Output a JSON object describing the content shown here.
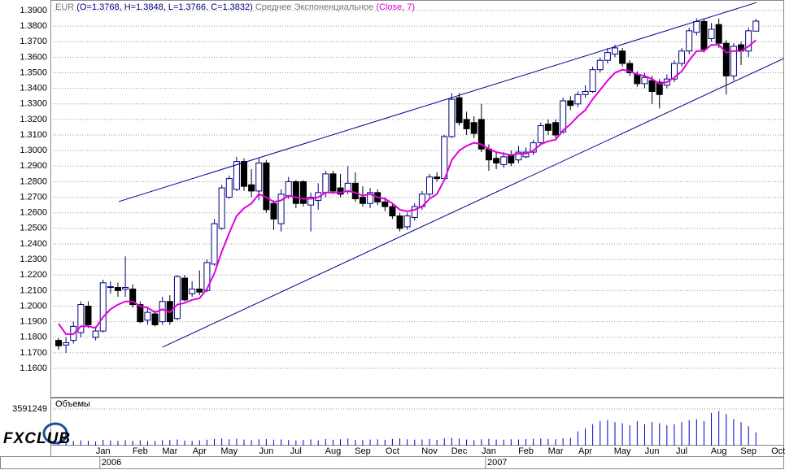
{
  "chart_data": {
    "type": "candlestick",
    "symbol": "EUR",
    "ohlc_label": "(O=1.3768, H=1.3848, L=1.3766, C=1.3832)",
    "indicator": {
      "name": "Среднее Экспоненциальное",
      "params": "(Close, 7)",
      "color": "#e000e0",
      "values": [
        1.1887,
        1.182,
        1.182,
        1.187,
        1.187,
        1.186,
        1.193,
        1.198,
        1.201,
        1.203,
        1.203,
        1.2,
        1.199,
        1.196,
        1.198,
        1.196,
        1.201,
        1.202,
        1.204,
        1.205,
        1.211,
        1.221,
        1.235,
        1.247,
        1.258,
        1.263,
        1.266,
        1.272,
        1.27,
        1.267,
        1.268,
        1.271,
        1.27,
        1.269,
        1.269,
        1.27,
        1.273,
        1.273,
        1.273,
        1.274,
        1.273,
        1.271,
        1.272,
        1.27,
        1.269,
        1.266,
        1.262,
        1.261,
        1.262,
        1.264,
        1.269,
        1.272,
        1.281,
        1.294,
        1.3,
        1.303,
        1.305,
        1.304,
        1.301,
        1.299,
        1.298,
        1.297,
        1.298,
        1.298,
        1.3,
        1.304,
        1.306,
        1.307,
        1.313,
        1.317,
        1.322,
        1.326,
        1.333,
        1.339,
        1.345,
        1.35,
        1.352,
        1.351,
        1.349,
        1.348,
        1.346,
        1.343,
        1.344,
        1.347,
        1.351,
        1.358,
        1.364,
        1.364,
        1.368,
        1.368,
        1.363,
        1.364,
        1.364,
        1.367,
        1.371,
        null,
        null,
        null
      ]
    },
    "volume_label": "Объемы",
    "logo": "FXCLUB",
    "categories": [
      null,
      null,
      null,
      null,
      null,
      null,
      "Jan",
      null,
      null,
      null,
      null,
      "Feb",
      null,
      null,
      null,
      "Mar",
      null,
      null,
      null,
      "Apr",
      null,
      null,
      null,
      "May",
      null,
      null,
      null,
      null,
      "Jun",
      null,
      null,
      null,
      "Jul",
      null,
      null,
      null,
      null,
      "Aug",
      null,
      null,
      null,
      "Sep",
      null,
      null,
      null,
      "Oct",
      null,
      null,
      null,
      null,
      "Nov",
      null,
      null,
      null,
      "Dec",
      null,
      null,
      null,
      "Jan",
      null,
      null,
      null,
      null,
      "Feb",
      null,
      null,
      null,
      "Mar",
      null,
      null,
      null,
      "Apr",
      null,
      null,
      null,
      null,
      "May",
      null,
      null,
      null,
      "Jun",
      null,
      null,
      null,
      "Jul",
      null,
      null,
      null,
      null,
      "Aug",
      null,
      null,
      null,
      "Sep",
      null,
      null,
      null,
      "Oct"
    ],
    "years": [
      null,
      null,
      null,
      null,
      null,
      null,
      "2006",
      null,
      null,
      null,
      null,
      null,
      null,
      null,
      null,
      null,
      null,
      null,
      null,
      null,
      null,
      null,
      null,
      null,
      null,
      null,
      null,
      null,
      null,
      null,
      null,
      null,
      null,
      null,
      null,
      null,
      null,
      null,
      null,
      null,
      null,
      null,
      null,
      null,
      null,
      null,
      null,
      null,
      null,
      null,
      null,
      null,
      null,
      null,
      null,
      null,
      null,
      null,
      "2007",
      null,
      null,
      null,
      null,
      null,
      null,
      null,
      null,
      null,
      null,
      null,
      null,
      null,
      null,
      null,
      null,
      null,
      null,
      null,
      null,
      null,
      null,
      null,
      null,
      null,
      null,
      null,
      null,
      null,
      null,
      null,
      null,
      null,
      null,
      null,
      null,
      null,
      null,
      null
    ],
    "open": [
      1.178,
      1.175,
      1.178,
      1.183,
      1.2,
      1.18,
      1.184,
      1.212,
      1.212,
      1.211,
      1.211,
      1.201,
      1.191,
      1.195,
      1.19,
      1.203,
      1.192,
      1.218,
      1.208,
      1.211,
      1.21,
      1.227,
      1.25,
      1.27,
      1.275,
      1.293,
      1.278,
      1.274,
      1.292,
      1.266,
      1.253,
      1.271,
      1.28,
      1.28,
      1.265,
      1.268,
      1.273,
      1.285,
      1.276,
      1.274,
      1.279,
      1.27,
      1.266,
      1.273,
      1.267,
      1.264,
      1.258,
      1.251,
      1.257,
      1.264,
      1.272,
      1.283,
      1.282,
      1.309,
      1.334,
      1.32,
      1.318,
      1.32,
      1.301,
      1.295,
      1.291,
      1.297,
      1.294,
      1.296,
      1.299,
      1.305,
      1.317,
      1.318,
      1.312,
      1.332,
      1.33,
      1.336,
      1.338,
      1.352,
      1.358,
      1.362,
      1.364,
      1.356,
      1.349,
      1.343,
      1.345,
      1.344,
      1.342,
      1.346,
      1.356,
      1.364,
      1.376,
      1.383,
      1.372,
      1.381,
      1.369,
      1.348,
      1.368,
      1.364,
      1.3768,
      null,
      null,
      null
    ],
    "high": [
      1.1795,
      1.18,
      1.19,
      1.203,
      1.203,
      1.187,
      1.217,
      1.216,
      1.215,
      1.232,
      1.214,
      1.203,
      1.199,
      1.197,
      1.206,
      1.207,
      1.22,
      1.22,
      1.216,
      1.223,
      1.23,
      1.256,
      1.278,
      1.284,
      1.296,
      1.295,
      1.288,
      1.295,
      1.294,
      1.268,
      1.275,
      1.283,
      1.281,
      1.281,
      1.273,
      1.279,
      1.287,
      1.287,
      1.285,
      1.29,
      1.286,
      1.277,
      1.276,
      1.275,
      1.27,
      1.266,
      1.26,
      1.26,
      1.266,
      1.274,
      1.285,
      1.286,
      1.31,
      1.337,
      1.337,
      1.325,
      1.322,
      1.33,
      1.304,
      1.299,
      1.299,
      1.3,
      1.303,
      1.302,
      1.307,
      1.318,
      1.32,
      1.32,
      1.334,
      1.335,
      1.338,
      1.342,
      1.354,
      1.36,
      1.366,
      1.368,
      1.366,
      1.358,
      1.351,
      1.35,
      1.348,
      1.346,
      1.349,
      1.358,
      1.366,
      1.379,
      1.385,
      1.385,
      1.382,
      1.385,
      1.371,
      1.369,
      1.37,
      1.379,
      1.3848,
      null,
      null,
      null
    ],
    "low": [
      1.172,
      1.17,
      1.176,
      1.18,
      1.186,
      1.178,
      1.183,
      1.208,
      1.206,
      1.206,
      1.199,
      1.189,
      1.188,
      1.187,
      1.188,
      1.188,
      1.191,
      1.203,
      1.206,
      1.207,
      1.209,
      1.226,
      1.249,
      1.269,
      1.274,
      1.274,
      1.27,
      1.268,
      1.26,
      1.249,
      1.248,
      1.269,
      1.263,
      1.264,
      1.248,
      1.262,
      1.27,
      1.272,
      1.27,
      1.272,
      1.267,
      1.264,
      1.263,
      1.265,
      1.261,
      1.256,
      1.248,
      1.249,
      1.255,
      1.262,
      1.27,
      1.28,
      1.281,
      1.308,
      1.316,
      1.31,
      1.308,
      1.299,
      1.287,
      1.288,
      1.289,
      1.29,
      1.292,
      1.295,
      1.297,
      1.304,
      1.31,
      1.308,
      1.311,
      1.326,
      1.328,
      1.334,
      1.337,
      1.35,
      1.356,
      1.36,
      1.354,
      1.348,
      1.341,
      1.34,
      1.33,
      1.327,
      1.34,
      1.344,
      1.354,
      1.362,
      1.374,
      1.363,
      1.37,
      1.366,
      1.336,
      1.345,
      1.355,
      1.36,
      1.3766,
      null,
      null,
      null
    ],
    "close": [
      1.1745,
      1.1765,
      1.187,
      1.201,
      1.188,
      1.184,
      1.215,
      1.2125,
      1.21,
      1.212,
      1.201,
      1.19,
      1.196,
      1.188,
      1.203,
      1.19,
      1.219,
      1.204,
      1.211,
      1.209,
      1.228,
      1.253,
      1.276,
      1.282,
      1.293,
      1.277,
      1.274,
      1.292,
      1.262,
      1.256,
      1.272,
      1.28,
      1.266,
      1.266,
      1.27,
      1.273,
      1.285,
      1.274,
      1.272,
      1.279,
      1.269,
      1.266,
      1.273,
      1.267,
      1.264,
      1.258,
      1.25,
      1.258,
      1.264,
      1.272,
      1.283,
      1.282,
      1.309,
      1.333,
      1.318,
      1.314,
      1.311,
      1.301,
      1.294,
      1.292,
      1.296,
      1.292,
      1.299,
      1.299,
      1.305,
      1.316,
      1.313,
      1.31,
      1.332,
      1.329,
      1.336,
      1.338,
      1.352,
      1.358,
      1.363,
      1.366,
      1.356,
      1.35,
      1.343,
      1.347,
      1.338,
      1.336,
      1.346,
      1.356,
      1.364,
      1.377,
      1.383,
      1.365,
      1.378,
      1.369,
      1.348,
      1.367,
      1.364,
      1.377,
      1.3832,
      null,
      null,
      null
    ],
    "volumes": [
      420000,
      380000,
      450000,
      520000,
      480000,
      400000,
      560000,
      500000,
      460000,
      520000,
      480000,
      530000,
      450000,
      470000,
      520000,
      550000,
      600000,
      490000,
      460000,
      520000,
      580000,
      640000,
      700000,
      620000,
      660000,
      590000,
      540000,
      610000,
      650000,
      580000,
      600000,
      540000,
      520000,
      560000,
      600000,
      510000,
      640000,
      580000,
      620000,
      700000,
      560000,
      530000,
      590000,
      610000,
      570000,
      650000,
      700000,
      620000,
      580000,
      600000,
      640000,
      560000,
      720000,
      760000,
      680000,
      590000,
      540000,
      620000,
      660000,
      600000,
      580000,
      620000,
      600000,
      640000,
      680000,
      700000,
      660000,
      620000,
      720000,
      760000,
      1400000,
      1700000,
      2100000,
      2400000,
      2500000,
      2300000,
      2200000,
      2000000,
      2400000,
      2100000,
      2300000,
      2200000,
      2000000,
      2100000,
      2300000,
      2500000,
      2600000,
      2400000,
      3200000,
      3400000,
      3100000,
      2600000,
      2300000,
      1900000,
      1300000,
      null,
      null,
      null
    ],
    "volume_color": "#0000cc",
    "volume_ylim": [
      0,
      3591249
    ],
    "volume_yticks": [
      3591249
    ],
    "up_color": "#ffffff",
    "down_color": "#000000",
    "outline_color": "#000080",
    "trendline_color": "#00008b",
    "trendlines": [
      {
        "x": [
          8.1,
          94.1
        ],
        "y": [
          1.2672,
          1.3952
        ]
      },
      {
        "x": [
          14.0,
          100.1
        ],
        "y": [
          1.1736,
          1.3644
        ]
      }
    ],
    "ylim": [
      1.1417,
      1.3968
    ],
    "yticks": [
      {
        "value": 1.16,
        "label": "1.1600"
      },
      {
        "value": 1.17,
        "label": "1.1700"
      },
      {
        "value": 1.18,
        "label": "1.1800"
      },
      {
        "value": 1.19,
        "label": "1.1900"
      },
      {
        "value": 1.2,
        "label": "1.2000"
      },
      {
        "value": 1.21,
        "label": "1.2100"
      },
      {
        "value": 1.22,
        "label": "1.2200"
      },
      {
        "value": 1.23,
        "label": "1.2300"
      },
      {
        "value": 1.24,
        "label": "1.2400"
      },
      {
        "value": 1.25,
        "label": "1.2500"
      },
      {
        "value": 1.26,
        "label": "1.2600"
      },
      {
        "value": 1.27,
        "label": "1.2700"
      },
      {
        "value": 1.28,
        "label": "1.2800"
      },
      {
        "value": 1.29,
        "label": "1.2900"
      },
      {
        "value": 1.3,
        "label": "1.3000"
      },
      {
        "value": 1.31,
        "label": "1.3100"
      },
      {
        "value": 1.32,
        "label": "1.3200"
      },
      {
        "value": 1.33,
        "label": "1.3300"
      },
      {
        "value": 1.34,
        "label": "1.3400"
      },
      {
        "value": 1.35,
        "label": "1.3500"
      },
      {
        "value": 1.36,
        "label": "1.3600"
      },
      {
        "value": 1.37,
        "label": "1.3700"
      },
      {
        "value": 1.38,
        "label": "1.3800"
      },
      {
        "value": 1.39,
        "label": "1.3900"
      }
    ],
    "grid": true
  }
}
